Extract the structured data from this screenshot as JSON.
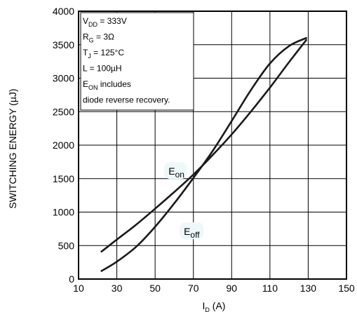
{
  "chart_data": {
    "type": "line",
    "xlabel": {
      "main": "I",
      "sub": "D",
      "tail": " (A)"
    },
    "ylabel": "SWITCHING ENERGY (µJ)",
    "xlim": [
      10,
      150
    ],
    "ylim": [
      0,
      4000
    ],
    "x_ticks": [
      10,
      30,
      50,
      70,
      90,
      110,
      130,
      150
    ],
    "y_ticks": [
      0,
      500,
      1000,
      1500,
      2000,
      2500,
      3000,
      3500,
      4000
    ],
    "grid": true,
    "annotation_box": [
      {
        "main": "V",
        "sub": "DD",
        "tail": " = 333V"
      },
      {
        "main": "R",
        "sub": "G",
        "tail": " = 3Ω"
      },
      {
        "main": "T",
        "sub": "J",
        "tail": " = 125°C"
      },
      {
        "main": "L = 100µH",
        "sub": "",
        "tail": ""
      },
      {
        "main": "E",
        "sub": "ON",
        "tail": "  includes"
      },
      {
        "main": "diode reverse recovery.",
        "sub": "",
        "tail": ""
      }
    ],
    "series": [
      {
        "name": "Eon",
        "label_main": "E",
        "label_sub": "on",
        "label_pos": [
          57,
          1600
        ],
        "x": [
          22,
          30,
          40,
          50,
          60,
          70,
          80,
          90,
          100,
          110,
          120,
          129
        ],
        "y": [
          410,
          590,
          810,
          1050,
          1300,
          1560,
          1850,
          2160,
          2500,
          2860,
          3240,
          3570
        ]
      },
      {
        "name": "Eoff",
        "label_main": "E",
        "label_sub": "off",
        "label_pos": [
          65,
          700
        ],
        "x": [
          22,
          30,
          40,
          50,
          60,
          70,
          80,
          90,
          100,
          110,
          120,
          129
        ],
        "y": [
          120,
          260,
          480,
          780,
          1130,
          1510,
          1910,
          2360,
          2820,
          3220,
          3480,
          3600
        ]
      }
    ]
  }
}
